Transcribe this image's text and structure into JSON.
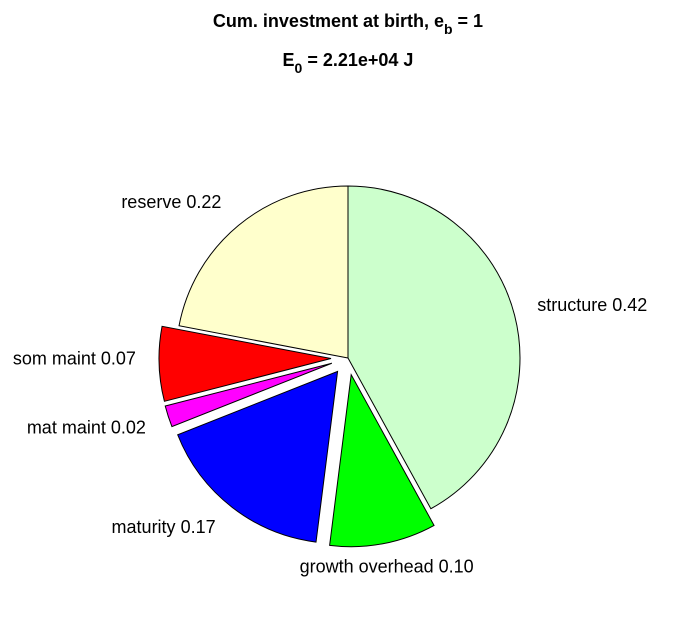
{
  "chart_data": {
    "type": "pie",
    "title": [
      {
        "text": "Cum. investment at birth, e"
      },
      {
        "text": "b",
        "sub": true
      },
      {
        "text": " = 1"
      }
    ],
    "subtitle": [
      {
        "text": "E"
      },
      {
        "text": "0",
        "sub": true
      },
      {
        "text": " = 2.21e+04 J"
      }
    ],
    "categories": [
      "structure",
      "growth overhead",
      "maturity",
      "mat maint",
      "som maint",
      "reserve"
    ],
    "values": [
      0.42,
      0.1,
      0.17,
      0.02,
      0.07,
      0.22
    ],
    "value_labels": [
      "0.42",
      "0.10",
      "0.17",
      "0.02",
      "0.07",
      "0.22"
    ],
    "colors": [
      "#ccffcc",
      "#00ff00",
      "#0000ff",
      "#ff00ff",
      "#ff0000",
      "#ffffcc"
    ],
    "explode": [
      false,
      true,
      true,
      true,
      true,
      false
    ]
  }
}
